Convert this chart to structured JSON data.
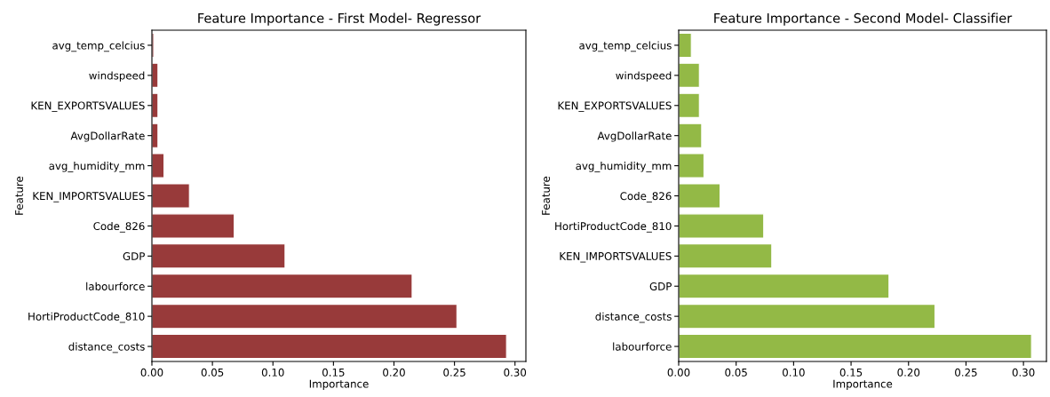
{
  "chart_data": [
    {
      "type": "bar",
      "orientation": "horizontal",
      "title": "Feature Importance - First Model- Regressor",
      "xlabel": "Importance",
      "ylabel": "Feature",
      "categories": [
        "avg_temp_celcius",
        "windspeed",
        "KEN_EXPORTSVALUES",
        "AvgDollarRate",
        "avg_humidity_mm",
        "KEN_IMPORTSVALUES",
        "Code_826",
        "GDP",
        "labourforce",
        "HortiProductCode_810",
        "distance_costs"
      ],
      "values": [
        0.0015,
        0.005,
        0.005,
        0.005,
        0.01,
        0.031,
        0.068,
        0.11,
        0.215,
        0.252,
        0.293
      ],
      "color": "#983a3a",
      "xlim": [
        0,
        0.309
      ],
      "xticks": [
        {
          "value": 0,
          "label": "0.00"
        },
        0.05,
        {
          "value": 0.1,
          "label": "0.10"
        },
        0.15,
        {
          "value": 0.2,
          "label": "0.20"
        },
        0.25,
        {
          "value": 0.3,
          "label": "0.30"
        }
      ],
      "grid": false,
      "legend": false
    },
    {
      "type": "bar",
      "orientation": "horizontal",
      "title": "Feature Importance - Second Model- Classifier",
      "xlabel": "Importance",
      "ylabel": "Feature",
      "categories": [
        "avg_temp_celcius",
        "windspeed",
        "KEN_EXPORTSVALUES",
        "AvgDollarRate",
        "avg_humidity_mm",
        "Code_826",
        "HortiProductCode_810",
        "KEN_IMPORTSVALUES",
        "GDP",
        "distance_costs",
        "labourforce"
      ],
      "values": [
        0.011,
        0.018,
        0.018,
        0.02,
        0.022,
        0.036,
        0.074,
        0.081,
        0.183,
        0.223,
        0.307
      ],
      "color": "#93b946",
      "xlim": [
        0,
        0.32
      ],
      "xticks": [
        {
          "value": 0,
          "label": "0.00"
        },
        0.05,
        {
          "value": 0.1,
          "label": "0.10"
        },
        0.15,
        {
          "value": 0.2,
          "label": "0.20"
        },
        0.25,
        {
          "value": 0.3,
          "label": "0.30"
        }
      ],
      "grid": false,
      "legend": false
    }
  ]
}
